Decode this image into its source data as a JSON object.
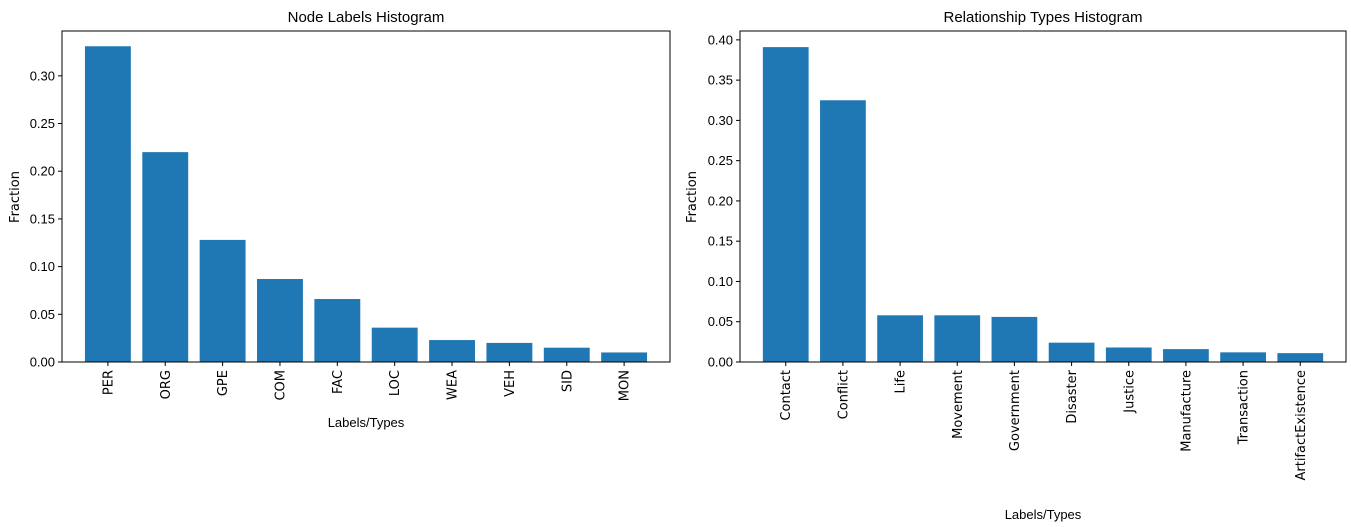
{
  "chart_data": [
    {
      "type": "bar",
      "title": "Node Labels Histogram",
      "xlabel": "Labels/Types",
      "ylabel": "Fraction",
      "categories": [
        "PER",
        "ORG",
        "GPE",
        "COM",
        "FAC",
        "LOC",
        "WEA",
        "VEH",
        "SID",
        "MON"
      ],
      "values": [
        0.331,
        0.22,
        0.128,
        0.087,
        0.066,
        0.036,
        0.023,
        0.02,
        0.015,
        0.01
      ],
      "yticks": [
        "0.00",
        "0.05",
        "0.10",
        "0.15",
        "0.20",
        "0.25",
        "0.30"
      ],
      "ylim": [
        0,
        0.347
      ],
      "color": "#1f77b4",
      "grid": false,
      "xtick_rotation": 90
    },
    {
      "type": "bar",
      "title": "Relationship Types Histogram",
      "xlabel": "Labels/Types",
      "ylabel": "Fraction",
      "categories": [
        "Contact",
        "Conflict",
        "Life",
        "Movement",
        "Government",
        "Disaster",
        "Justice",
        "Manufacture",
        "Transaction",
        "ArtifactExistence"
      ],
      "values": [
        0.391,
        0.325,
        0.058,
        0.058,
        0.056,
        0.024,
        0.018,
        0.016,
        0.012,
        0.011
      ],
      "yticks": [
        "0.00",
        "0.05",
        "0.10",
        "0.15",
        "0.20",
        "0.25",
        "0.30",
        "0.35",
        "0.40"
      ],
      "ylim": [
        0,
        0.411
      ],
      "color": "#1f77b4",
      "grid": false,
      "xtick_rotation": 90
    }
  ]
}
